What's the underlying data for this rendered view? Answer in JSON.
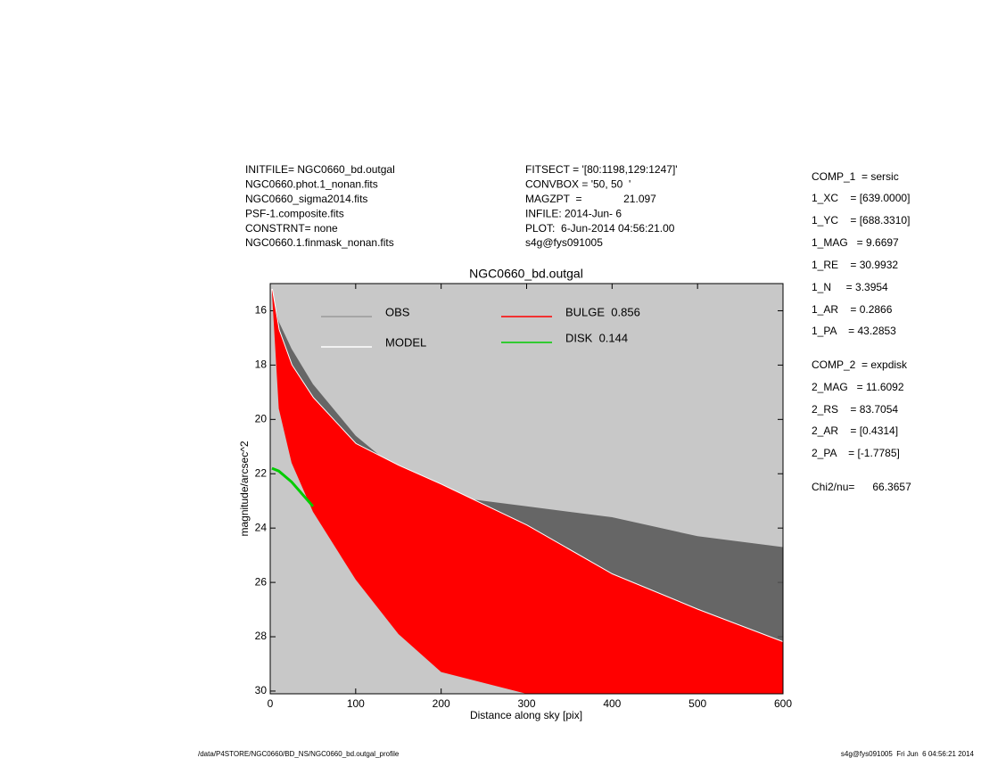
{
  "header_left": [
    "INITFILE= NGC0660_bd.outgal",
    "NGC0660.phot.1_nonan.fits",
    "NGC0660_sigma2014.fits",
    "PSF-1.composite.fits",
    "CONSTRNT= none",
    "NGC0660.1.finmask_nonan.fits"
  ],
  "header_middle": [
    "FITSECT = '[80:1198,129:1247]'",
    "CONVBOX = '50, 50  '",
    "MAGZPT  =              21.097",
    "INFILE: 2014-Jun- 6",
    "PLOT:  6-Jun-2014 04:56:21.00",
    "s4g@fys091005"
  ],
  "parameters": [
    "COMP_1  = sersic",
    "1_XC    = [639.0000]",
    "1_YC    = [688.3310]",
    "1_MAG   = 9.6697",
    "1_RE    = 30.9932",
    "1_N     = 3.3954",
    "1_AR    = 0.2866",
    "1_PA    = 43.2853",
    "COMP_2  = expdisk",
    "2_MAG   = 11.6092",
    "2_RS    = 83.7054",
    "2_AR    = [0.4314]",
    "2_PA    = [-1.7785]",
    "Chi2/nu=      66.3657"
  ],
  "footer_left": "/data/P4STORE/NGC0660/BD_NS/NGC0660_bd.outgal_profile",
  "footer_right": "s4g@fys091005  Fri Jun  6 04:56:21 2014",
  "chart_data": {
    "type": "line",
    "title": "NGC0660_bd.outgal",
    "x_label": "Distance along sky [pix]",
    "y_label": "magnitude/arcsec^2",
    "x": [
      2,
      10,
      25,
      50,
      100,
      150,
      200,
      300,
      400,
      500,
      600
    ],
    "series": [
      {
        "name": "OBS",
        "color": "#555555",
        "values": [
          15.2,
          16.4,
          17.4,
          18.7,
          20.6,
          21.9,
          22.8,
          23.2,
          23.6,
          24.3,
          24.7
        ]
      },
      {
        "name": "MODEL",
        "color": "#ffffff",
        "values": [
          15.2,
          16.7,
          18.0,
          19.2,
          20.9,
          21.7,
          22.4,
          23.9,
          25.7,
          27.0,
          28.2
        ]
      },
      {
        "name": "BULGE  0.856",
        "color": "#ff0000",
        "values": [
          15.3,
          19.6,
          21.6,
          23.4,
          25.9,
          27.9,
          29.3,
          30.1,
          30.1,
          30.1,
          30.1
        ]
      },
      {
        "name": "DISK  0.144",
        "color": "#00cc00",
        "values": [
          21.8,
          21.9,
          22.3,
          23.2,
          null,
          null,
          null,
          null,
          null,
          null,
          null
        ]
      }
    ],
    "xlim": [
      0,
      600
    ],
    "xticks": [
      0,
      100,
      200,
      300,
      400,
      500,
      600
    ],
    "ylim": [
      30.1,
      15
    ],
    "yticks": [
      16,
      18,
      20,
      22,
      24,
      26,
      28,
      30
    ],
    "background": "#c8c8c8"
  }
}
